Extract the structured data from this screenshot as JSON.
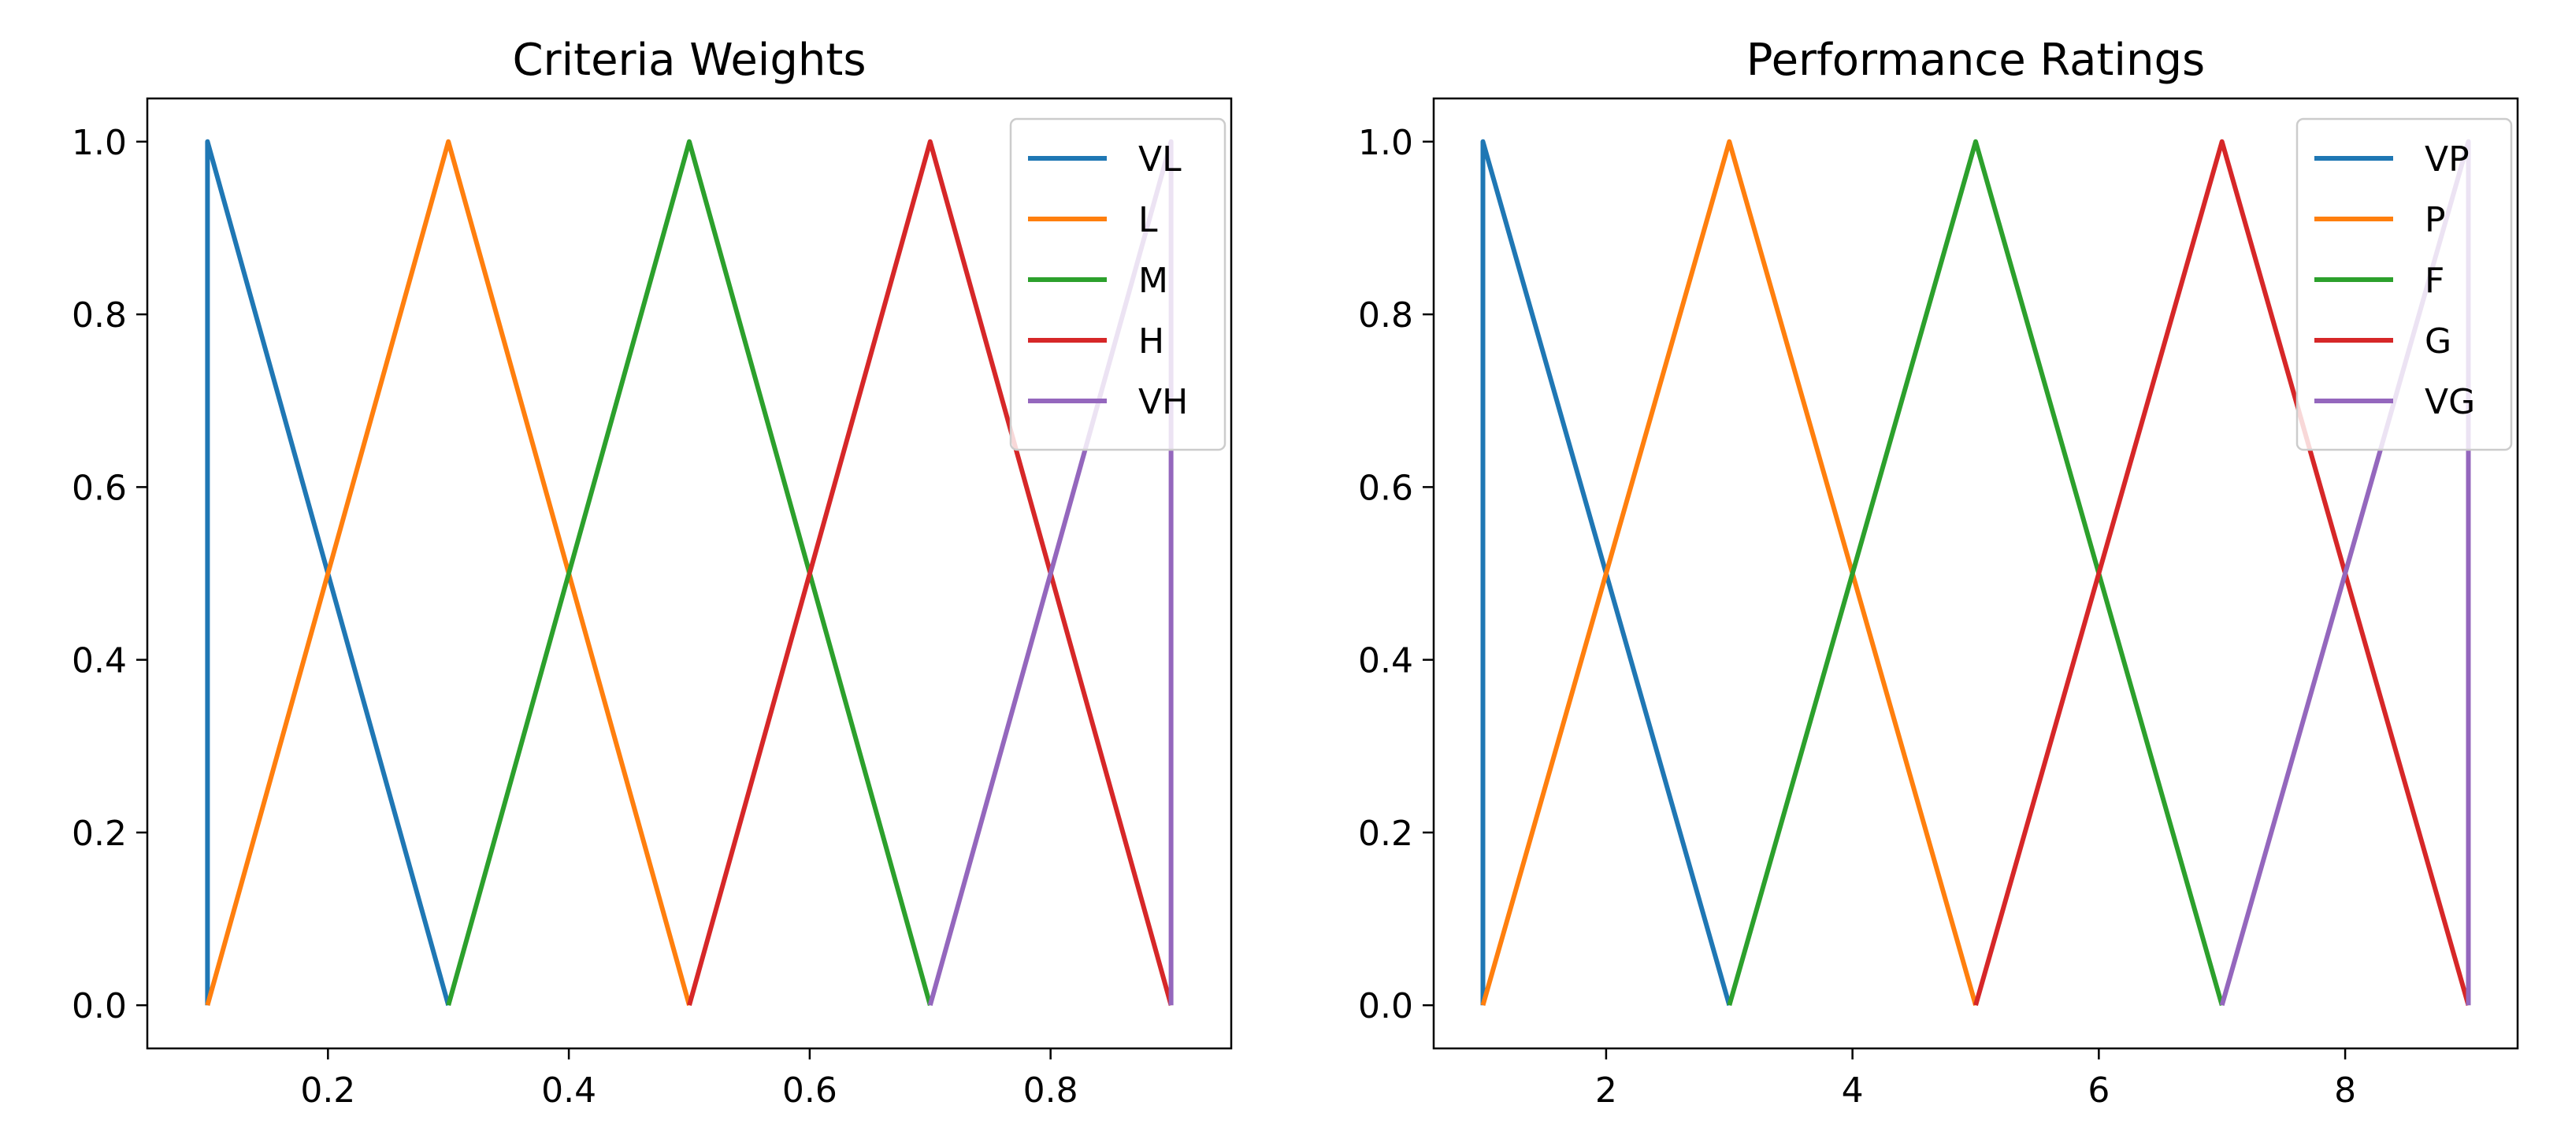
{
  "chart_data": [
    {
      "type": "line",
      "title": "Criteria Weights",
      "xlabel": "",
      "ylabel": "",
      "xlim": [
        0.05,
        0.95
      ],
      "ylim": [
        -0.05,
        1.05
      ],
      "xticks": [
        0.2,
        0.4,
        0.6,
        0.8
      ],
      "xtick_labels": [
        "0.2",
        "0.4",
        "0.6",
        "0.8"
      ],
      "yticks": [
        0.0,
        0.2,
        0.4,
        0.6,
        0.8,
        1.0
      ],
      "ytick_labels": [
        "0.0",
        "0.2",
        "0.4",
        "0.6",
        "0.8",
        "1.0"
      ],
      "legend": "top-right",
      "series": [
        {
          "name": "VL",
          "color": "#1f77b4",
          "x": [
            0.1,
            0.1,
            0.3
          ],
          "y": [
            0,
            1,
            0
          ]
        },
        {
          "name": "L",
          "color": "#ff7f0e",
          "x": [
            0.1,
            0.3,
            0.5
          ],
          "y": [
            0,
            1,
            0
          ]
        },
        {
          "name": "M",
          "color": "#2ca02c",
          "x": [
            0.3,
            0.5,
            0.7
          ],
          "y": [
            0,
            1,
            0
          ]
        },
        {
          "name": "H",
          "color": "#d62728",
          "x": [
            0.5,
            0.7,
            0.9
          ],
          "y": [
            0,
            1,
            0
          ]
        },
        {
          "name": "VH",
          "color": "#9467bd",
          "x": [
            0.7,
            0.9,
            0.9
          ],
          "y": [
            0,
            1,
            0
          ]
        }
      ]
    },
    {
      "type": "line",
      "title": "Performance Ratings",
      "xlabel": "",
      "ylabel": "",
      "xlim": [
        0.6,
        9.4
      ],
      "ylim": [
        -0.05,
        1.05
      ],
      "xticks": [
        2,
        4,
        6,
        8
      ],
      "xtick_labels": [
        "2",
        "4",
        "6",
        "8"
      ],
      "yticks": [
        0.0,
        0.2,
        0.4,
        0.6,
        0.8,
        1.0
      ],
      "ytick_labels": [
        "0.0",
        "0.2",
        "0.4",
        "0.6",
        "0.8",
        "1.0"
      ],
      "legend": "top-right",
      "series": [
        {
          "name": "VP",
          "color": "#1f77b4",
          "x": [
            1,
            1,
            3
          ],
          "y": [
            0,
            1,
            0
          ]
        },
        {
          "name": "P",
          "color": "#ff7f0e",
          "x": [
            1,
            3,
            5
          ],
          "y": [
            0,
            1,
            0
          ]
        },
        {
          "name": "F",
          "color": "#2ca02c",
          "x": [
            3,
            5,
            7
          ],
          "y": [
            0,
            1,
            0
          ]
        },
        {
          "name": "G",
          "color": "#d62728",
          "x": [
            5,
            7,
            9
          ],
          "y": [
            0,
            1,
            0
          ]
        },
        {
          "name": "VG",
          "color": "#9467bd",
          "x": [
            7,
            9,
            9
          ],
          "y": [
            0,
            1,
            0
          ]
        }
      ]
    }
  ]
}
